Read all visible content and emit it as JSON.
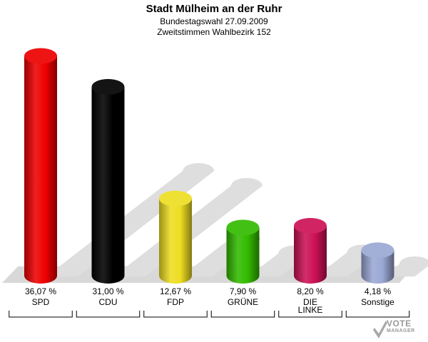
{
  "chart_data": {
    "type": "bar",
    "title": "Stadt Mülheim an der Ruhr",
    "subtitle": "Bundestagswahl 27.09.2009",
    "subtitle2": "Zweitstimmen Wahlbezirk 152",
    "categories": [
      "SPD",
      "CDU",
      "FDP",
      "GRÜNE",
      "DIE LINKE",
      "Sonstige"
    ],
    "category_lines": [
      [
        "SPD"
      ],
      [
        "CDU"
      ],
      [
        "FDP"
      ],
      [
        "GRÜNE"
      ],
      [
        "DIE",
        "LINKE"
      ],
      [
        "Sonstige"
      ]
    ],
    "values": [
      36.07,
      31.0,
      12.67,
      7.9,
      8.2,
      4.18
    ],
    "value_labels": [
      "36,07 %",
      "31,00 %",
      "12,67 %",
      "7,90 %",
      "8,20 %",
      "4,18 %"
    ],
    "colors": [
      "#ee0000",
      "#000000",
      "#eedd22",
      "#33bb00",
      "#cc1155",
      "#9aa8d4"
    ],
    "ylim": [
      0,
      38
    ],
    "grid": false,
    "legend": "none"
  },
  "logo": {
    "line1": "VOTE",
    "line2": "MANAGER"
  }
}
